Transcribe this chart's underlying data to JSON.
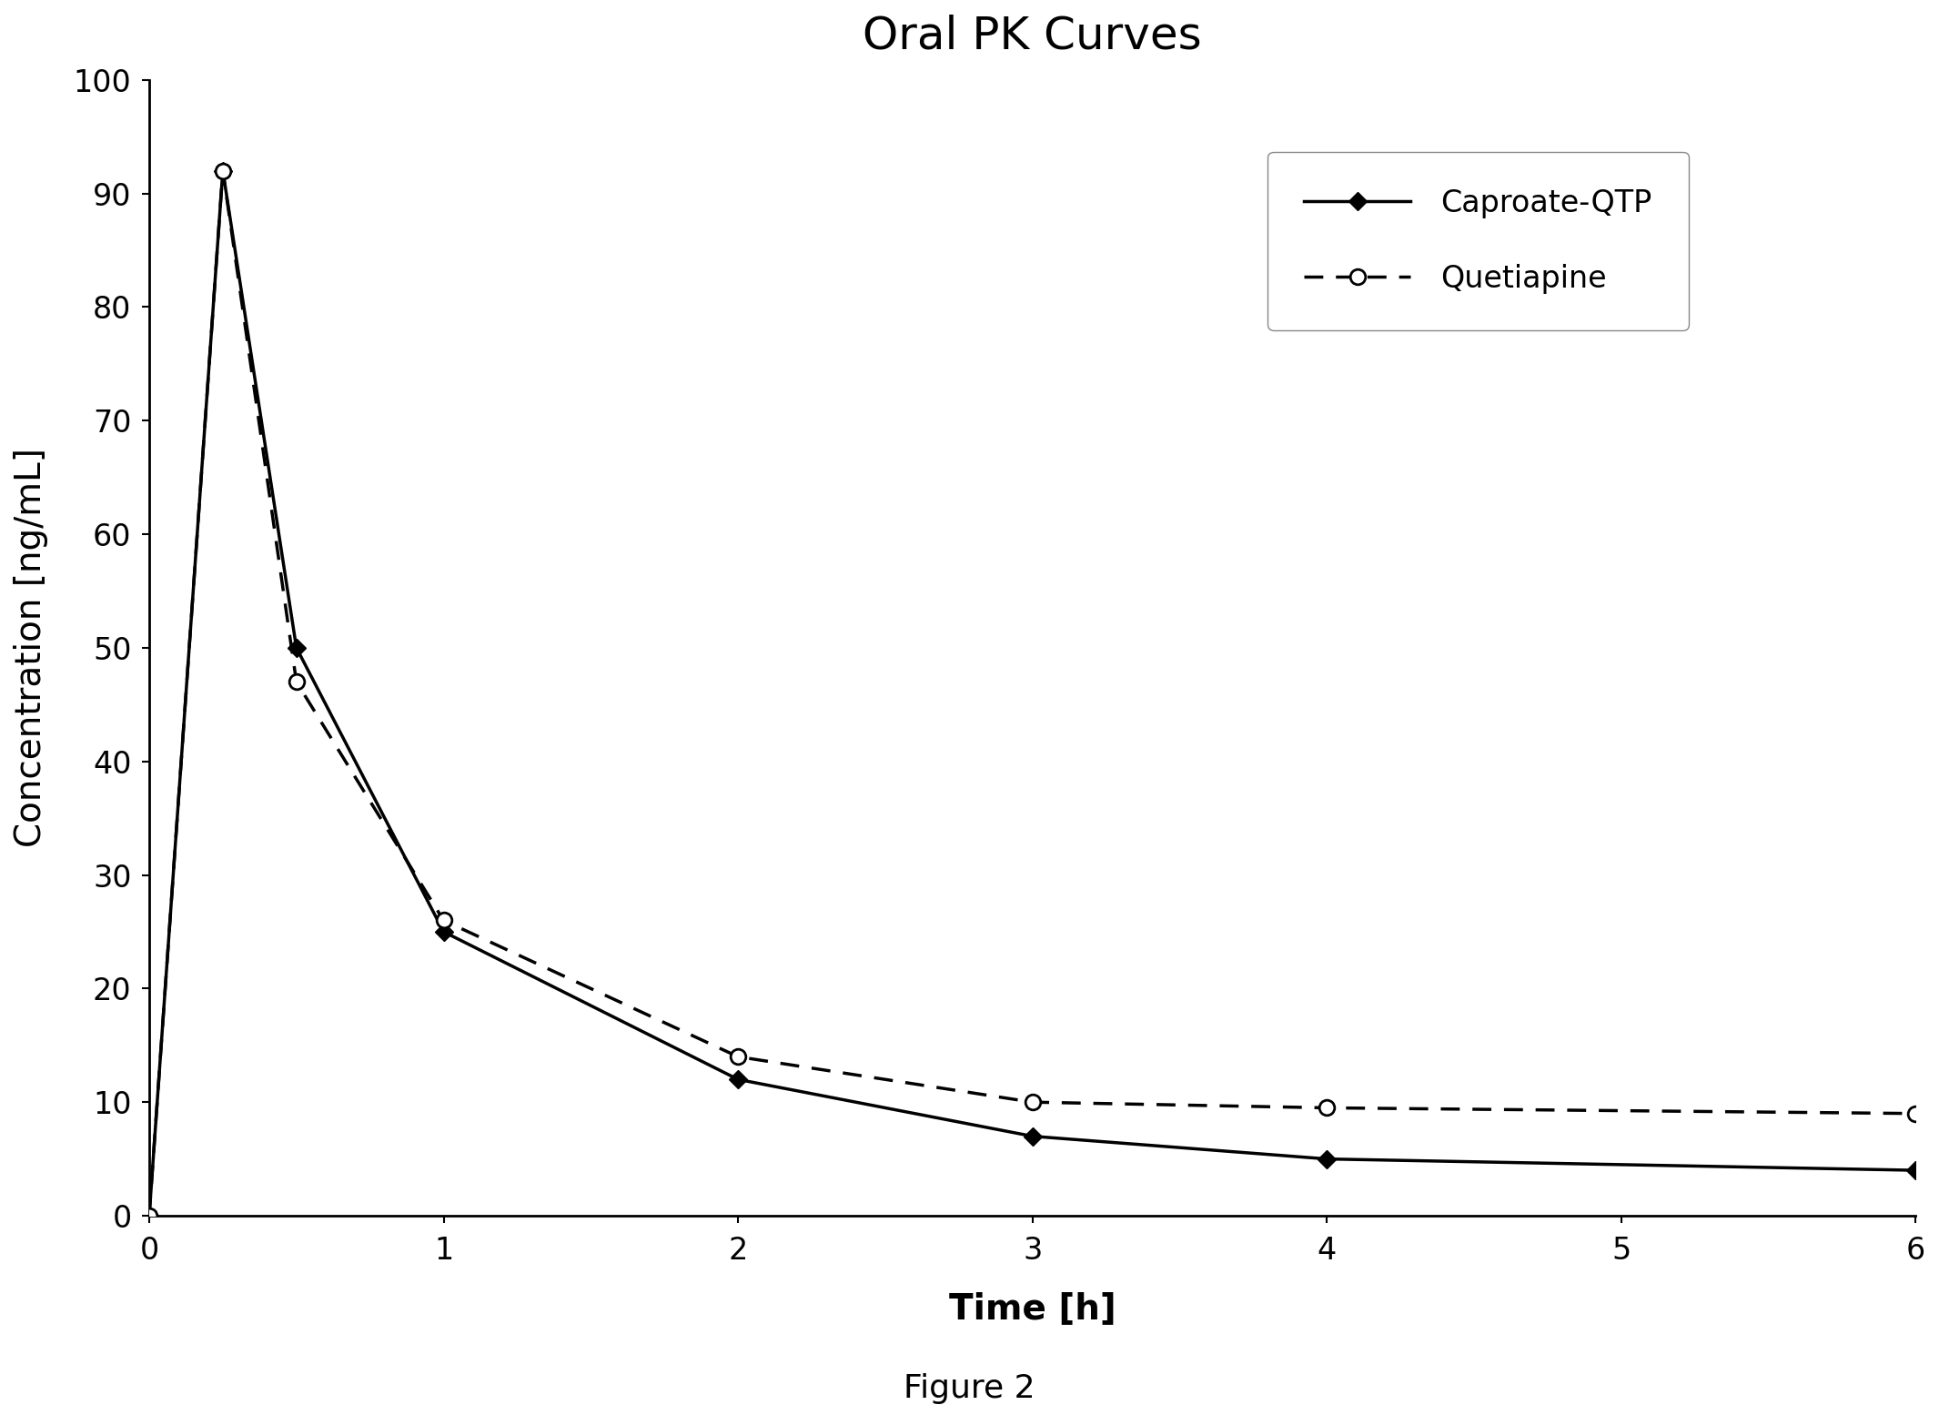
{
  "title": "Oral PK Curves",
  "xlabel": "Time [h]",
  "ylabel": "Concentration [ng/mL]",
  "figure_caption": "Figure 2",
  "xlim": [
    0,
    6
  ],
  "ylim": [
    0,
    100
  ],
  "xticks": [
    0,
    1,
    2,
    3,
    4,
    5,
    6
  ],
  "yticks": [
    0,
    10,
    20,
    30,
    40,
    50,
    60,
    70,
    80,
    90,
    100
  ],
  "caproate_x": [
    0,
    0.25,
    0.5,
    1.0,
    2.0,
    3.0,
    4.0,
    6.0
  ],
  "caproate_y": [
    0,
    92,
    50,
    25,
    12,
    7,
    5,
    4
  ],
  "quetiapine_x": [
    0,
    0.25,
    0.5,
    1.0,
    2.0,
    3.0,
    4.0,
    6.0
  ],
  "quetiapine_y": [
    0,
    92,
    47,
    26,
    14,
    10,
    9.5,
    9
  ],
  "caproate_color": "#000000",
  "quetiapine_color": "#000000",
  "background_color": "#ffffff",
  "title_fontsize": 36,
  "axis_label_fontsize": 28,
  "tick_fontsize": 24,
  "legend_fontsize": 24,
  "caption_fontsize": 26,
  "line_width": 2.5,
  "marker_size_diamond": 10,
  "marker_size_circle": 12
}
